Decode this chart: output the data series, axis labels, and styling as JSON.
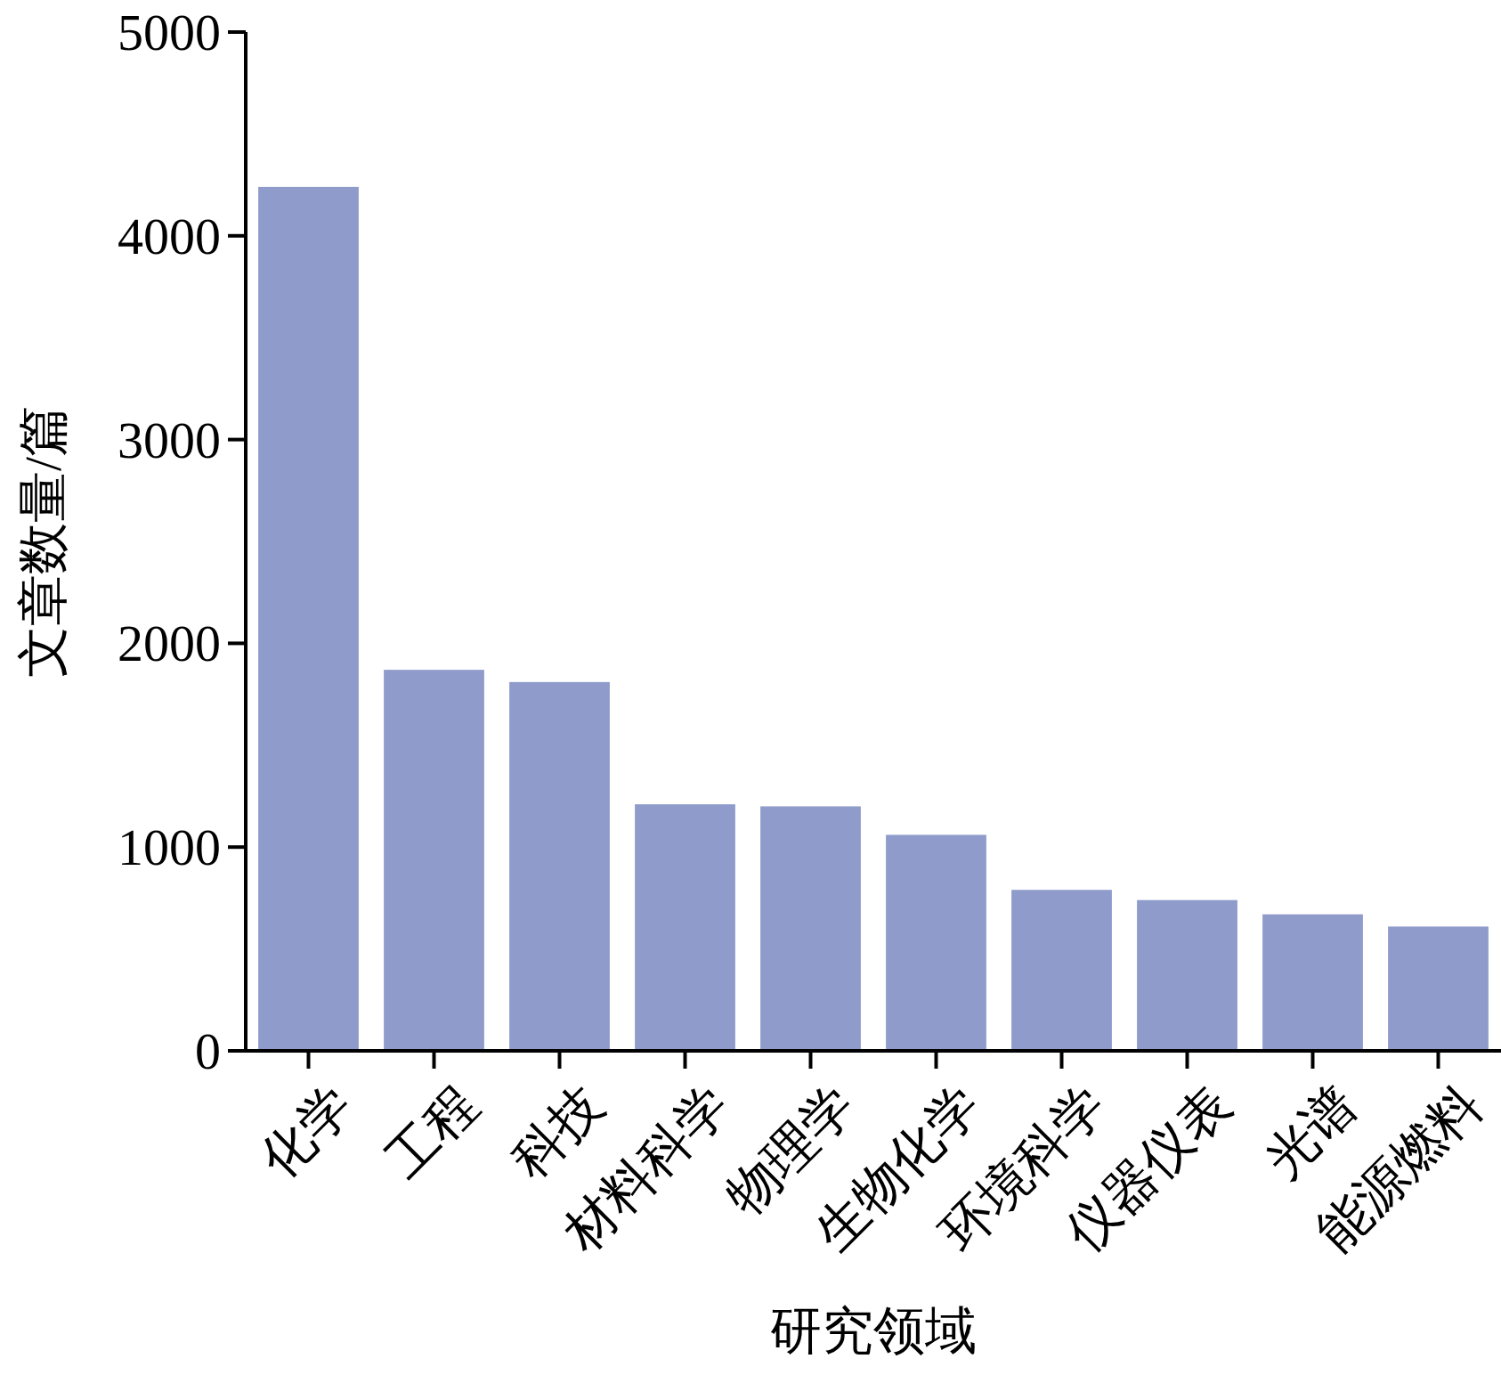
{
  "chart_data": {
    "type": "bar",
    "xlabel": "研究领域",
    "ylabel": "文章数量/篇",
    "categories": [
      "化学",
      "工程",
      "科技",
      "材料科学",
      "物理学",
      "生物化学",
      "环境科学",
      "仪器仪表",
      "光谱",
      "能源燃料"
    ],
    "values": [
      4240,
      1870,
      1810,
      1210,
      1200,
      1060,
      790,
      740,
      670,
      610
    ],
    "color": "#8f9ccb",
    "ylim": [
      0,
      5000
    ],
    "yticks": [
      0,
      1000,
      2000,
      3000,
      4000,
      5000
    ],
    "grid": false
  }
}
